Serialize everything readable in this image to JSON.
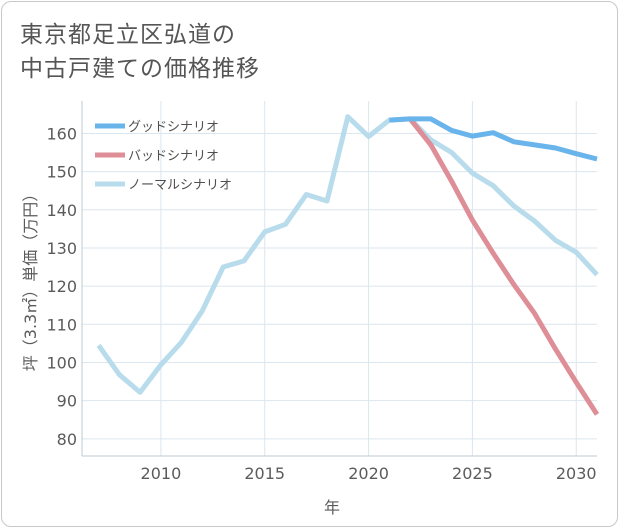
{
  "title": {
    "line1": "東京都足立区弘道の",
    "line2": "中古戸建ての価格推移"
  },
  "chart_data": {
    "type": "line",
    "xlabel": "年",
    "ylabel": "坪（3.3㎡）単価（万円）",
    "xlim": [
      2006.2,
      2031
    ],
    "ylim": [
      75.5,
      168.5
    ],
    "x_ticks": [
      2010,
      2015,
      2020,
      2025,
      2030
    ],
    "y_ticks": [
      80,
      90,
      100,
      110,
      120,
      130,
      140,
      150,
      160
    ],
    "legend_position": "top-left",
    "grid": true,
    "series": [
      {
        "name": "グッドシナリオ",
        "color": "#6ab4ec",
        "points": [
          [
            2021,
            163.5
          ],
          [
            2022,
            163.8
          ],
          [
            2023,
            163.8
          ],
          [
            2024,
            160.8
          ],
          [
            2025,
            159.3
          ],
          [
            2026,
            160.2
          ],
          [
            2027,
            157.8
          ],
          [
            2028,
            157.0
          ],
          [
            2029,
            156.2
          ],
          [
            2030,
            154.7
          ],
          [
            2031,
            153.3
          ]
        ]
      },
      {
        "name": "バッドシナリオ",
        "color": "#de8e96",
        "points": [
          [
            2022,
            163.8
          ],
          [
            2023,
            157.0
          ],
          [
            2024,
            147.5
          ],
          [
            2025,
            137.3
          ],
          [
            2026,
            128.6
          ],
          [
            2027,
            120.4
          ],
          [
            2028,
            112.8
          ],
          [
            2029,
            103.5
          ],
          [
            2030,
            94.8
          ],
          [
            2031,
            86.4
          ]
        ]
      },
      {
        "name": "ノーマルシナリオ",
        "color": "#b8dcec",
        "points": [
          [
            2007,
            104.5
          ],
          [
            2008,
            96.8
          ],
          [
            2009,
            92.2
          ],
          [
            2010,
            99.4
          ],
          [
            2011,
            105.4
          ],
          [
            2012,
            113.6
          ],
          [
            2013,
            125.0
          ],
          [
            2014,
            126.6
          ],
          [
            2015,
            134.2
          ],
          [
            2016,
            136.2
          ],
          [
            2017,
            144.0
          ],
          [
            2018,
            142.3
          ],
          [
            2019,
            164.4
          ],
          [
            2020,
            159.2
          ],
          [
            2021,
            163.5
          ],
          [
            2022,
            163.8
          ],
          [
            2023,
            158.3
          ],
          [
            2024,
            155.0
          ],
          [
            2025,
            149.6
          ],
          [
            2026,
            146.3
          ],
          [
            2027,
            141.0
          ],
          [
            2028,
            137.0
          ],
          [
            2029,
            132.0
          ],
          [
            2030,
            128.9
          ],
          [
            2031,
            123.0
          ]
        ]
      }
    ]
  }
}
